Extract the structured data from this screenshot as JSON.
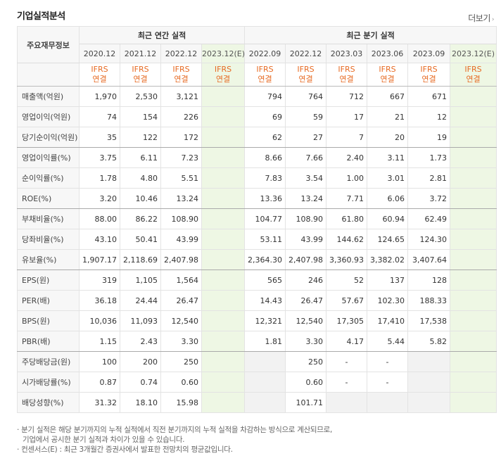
{
  "header": {
    "title": "기업실적분석",
    "more_label": "더보기",
    "more_arrow": "›"
  },
  "table": {
    "row_header": "주요재무정보",
    "group_annual": "최근 연간 실적",
    "group_quarter": "최근 분기 실적",
    "annual_periods": [
      "2020.12",
      "2021.12",
      "2022.12",
      "2023.12(E)"
    ],
    "quarter_periods": [
      "2022.09",
      "2022.12",
      "2023.03",
      "2023.06",
      "2023.09",
      "2023.12(E)"
    ],
    "basis_line1": "IFRS",
    "basis_line2": "연결",
    "rows": [
      {
        "label": "매출액(억원)",
        "annual": [
          "1,970",
          "2,530",
          "3,121",
          ""
        ],
        "quarter": [
          "794",
          "764",
          "712",
          "667",
          "671",
          ""
        ]
      },
      {
        "label": "영업이익(억원)",
        "annual": [
          "74",
          "154",
          "226",
          ""
        ],
        "quarter": [
          "69",
          "59",
          "17",
          "21",
          "12",
          ""
        ]
      },
      {
        "label": "당기순이익(억원)",
        "annual": [
          "35",
          "122",
          "172",
          ""
        ],
        "quarter": [
          "62",
          "27",
          "7",
          "20",
          "19",
          ""
        ]
      },
      {
        "label": "영업이익률(%)",
        "annual": [
          "3.75",
          "6.11",
          "7.23",
          ""
        ],
        "quarter": [
          "8.66",
          "7.66",
          "2.40",
          "3.11",
          "1.73",
          ""
        ]
      },
      {
        "label": "순이익률(%)",
        "annual": [
          "1.78",
          "4.80",
          "5.51",
          ""
        ],
        "quarter": [
          "7.83",
          "3.54",
          "1.00",
          "3.01",
          "2.81",
          ""
        ]
      },
      {
        "label": "ROE(%)",
        "annual": [
          "3.20",
          "10.46",
          "13.24",
          ""
        ],
        "quarter": [
          "13.36",
          "13.24",
          "7.71",
          "6.06",
          "3.72",
          ""
        ]
      },
      {
        "label": "부채비율(%)",
        "annual": [
          "88.00",
          "86.22",
          "108.90",
          ""
        ],
        "quarter": [
          "104.77",
          "108.90",
          "61.80",
          "60.94",
          "62.49",
          ""
        ]
      },
      {
        "label": "당좌비율(%)",
        "annual": [
          "43.10",
          "50.41",
          "43.99",
          ""
        ],
        "quarter": [
          "53.11",
          "43.99",
          "144.62",
          "124.65",
          "124.30",
          ""
        ]
      },
      {
        "label": "유보율(%)",
        "annual": [
          "1,907.17",
          "2,118.69",
          "2,407.98",
          ""
        ],
        "quarter": [
          "2,364.30",
          "2,407.98",
          "3,360.93",
          "3,382.02",
          "3,407.64",
          ""
        ]
      },
      {
        "label": "EPS(원)",
        "annual": [
          "319",
          "1,105",
          "1,564",
          ""
        ],
        "quarter": [
          "565",
          "246",
          "52",
          "137",
          "128",
          ""
        ]
      },
      {
        "label": "PER(배)",
        "annual": [
          "36.18",
          "24.44",
          "26.47",
          ""
        ],
        "quarter": [
          "14.43",
          "26.47",
          "57.67",
          "102.30",
          "188.33",
          ""
        ]
      },
      {
        "label": "BPS(원)",
        "annual": [
          "10,036",
          "11,093",
          "12,540",
          ""
        ],
        "quarter": [
          "12,321",
          "12,540",
          "17,305",
          "17,410",
          "17,538",
          ""
        ]
      },
      {
        "label": "PBR(배)",
        "annual": [
          "1.15",
          "2.43",
          "3.30",
          ""
        ],
        "quarter": [
          "1.81",
          "3.30",
          "4.17",
          "5.44",
          "5.82",
          ""
        ]
      },
      {
        "label": "주당배당금(원)",
        "annual": [
          "100",
          "200",
          "250",
          ""
        ],
        "quarter": [
          "",
          "250",
          "-",
          "-",
          "",
          ""
        ]
      },
      {
        "label": "시가배당률(%)",
        "annual": [
          "0.87",
          "0.74",
          "0.60",
          ""
        ],
        "quarter": [
          "",
          "0.60",
          "-",
          "-",
          "",
          ""
        ]
      },
      {
        "label": "배당성향(%)",
        "annual": [
          "31.32",
          "18.10",
          "15.98",
          ""
        ],
        "quarter": [
          "",
          "101.71",
          "",
          "",
          "",
          ""
        ]
      }
    ]
  },
  "notes": {
    "line1": "· 분기 실적은 해당 분기까지의 누적 실적에서 직전 분기까지의 누적 실적을 차감하는 방식으로 계산되므로,",
    "line2": "기업에서 공시한 분기 실적과 차이가 있을 수 있습니다.",
    "line3": "· 컨센서스(E) : 최근 3개월간 증권사에서 발표한 전망치의 평균값입니다."
  },
  "colors": {
    "accent_orange": "#e76b24",
    "estimate_bg": "#eef7e4",
    "header_bg": "#f7f7f7"
  }
}
